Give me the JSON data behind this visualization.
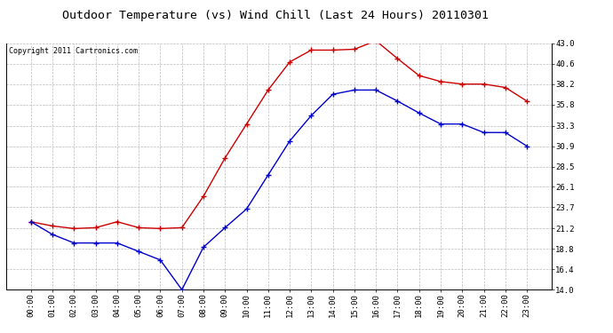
{
  "title": "Outdoor Temperature (vs) Wind Chill (Last 24 Hours) 20110301",
  "copyright": "Copyright 2011 Cartronics.com",
  "x_labels": [
    "00:00",
    "01:00",
    "02:00",
    "03:00",
    "04:00",
    "05:00",
    "06:00",
    "07:00",
    "08:00",
    "09:00",
    "10:00",
    "11:00",
    "12:00",
    "13:00",
    "14:00",
    "15:00",
    "16:00",
    "17:00",
    "18:00",
    "19:00",
    "20:00",
    "21:00",
    "22:00",
    "23:00"
  ],
  "temp_red": [
    22.0,
    21.5,
    21.2,
    21.3,
    22.0,
    21.3,
    21.2,
    21.3,
    25.0,
    29.5,
    33.5,
    37.5,
    40.8,
    42.2,
    42.2,
    42.3,
    43.3,
    41.2,
    39.2,
    38.5,
    38.2,
    38.2,
    37.8,
    36.2
  ],
  "wind_chill_blue": [
    22.0,
    20.5,
    19.5,
    19.5,
    19.5,
    18.5,
    17.5,
    14.0,
    19.0,
    21.3,
    23.5,
    27.5,
    31.5,
    34.5,
    37.0,
    37.5,
    37.5,
    36.2,
    34.8,
    33.5,
    33.5,
    32.5,
    32.5,
    30.9
  ],
  "ylim": [
    14.0,
    43.0
  ],
  "yticks": [
    14.0,
    16.4,
    18.8,
    21.2,
    23.7,
    26.1,
    28.5,
    30.9,
    33.3,
    35.8,
    38.2,
    40.6,
    43.0
  ],
  "red_color": "#cc0000",
  "blue_color": "#0000cc",
  "bg_color": "#ffffff",
  "grid_color": "#bbbbbb",
  "title_fontsize": 9.5,
  "tick_fontsize": 6.5,
  "copyright_fontsize": 6.0
}
